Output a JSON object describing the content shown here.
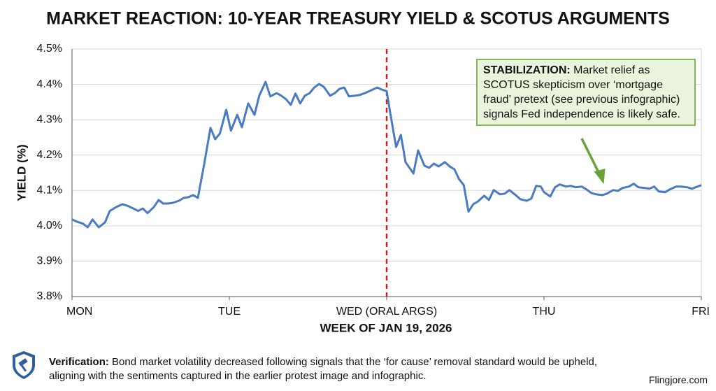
{
  "chart_data": {
    "type": "line",
    "title": "MARKET REACTION: 10-YEAR TREASURY YIELD & SCOTUS ARGUMENTS",
    "y_label": "YIELD (%)",
    "x_label": "WEEK OF JAN 19, 2026",
    "color": "#4a7bc0",
    "grid": true,
    "xlim": [
      0,
      4
    ],
    "xticks": [
      {
        "value": 0,
        "label": "MON"
      },
      {
        "value": 1,
        "label": "TUE"
      },
      {
        "value": 2,
        "label": "WED (ORAL ARGS)"
      },
      {
        "value": 3,
        "label": "THU"
      },
      {
        "value": 4,
        "label": "FRI"
      }
    ],
    "ylim": [
      3.8,
      4.5
    ],
    "yticks": [
      {
        "value": 3.8,
        "label": "3.8%"
      },
      {
        "value": 3.9,
        "label": "3.9%"
      },
      {
        "value": 4.0,
        "label": "4.0%"
      },
      {
        "value": 4.1,
        "label": "4.1%"
      },
      {
        "value": 4.2,
        "label": "4.2%"
      },
      {
        "value": 4.3,
        "label": "4.3%"
      },
      {
        "value": 4.4,
        "label": "4.4%"
      },
      {
        "value": 4.5,
        "label": "4.5%"
      }
    ],
    "vline": {
      "x": 2,
      "color": "#cc2222"
    },
    "annotation": {
      "label": "STABILIZATION:",
      "text": "Market relief as SCOTUS skepticism over ‘mortgage fraud’ pretext (see previous infographic) signals Fed independence is likely safe.",
      "x": 3.38,
      "y": 4.118
    },
    "x": [
      0.0,
      0.03,
      0.07,
      0.1,
      0.13,
      0.17,
      0.21,
      0.24,
      0.28,
      0.32,
      0.35,
      0.39,
      0.42,
      0.45,
      0.48,
      0.52,
      0.55,
      0.58,
      0.61,
      0.64,
      0.68,
      0.71,
      0.74,
      0.77,
      0.8,
      0.84,
      0.88,
      0.91,
      0.94,
      0.98,
      1.01,
      1.05,
      1.08,
      1.12,
      1.16,
      1.19,
      1.23,
      1.26,
      1.3,
      1.33,
      1.36,
      1.39,
      1.42,
      1.45,
      1.48,
      1.51,
      1.54,
      1.57,
      1.6,
      1.64,
      1.67,
      1.7,
      1.73,
      1.76,
      1.8,
      1.83,
      1.86,
      1.9,
      1.94,
      1.97,
      2.0,
      2.02,
      2.06,
      2.09,
      2.12,
      2.17,
      2.2,
      2.24,
      2.27,
      2.3,
      2.33,
      2.37,
      2.4,
      2.43,
      2.46,
      2.49,
      2.52,
      2.55,
      2.58,
      2.62,
      2.65,
      2.68,
      2.72,
      2.75,
      2.78,
      2.82,
      2.85,
      2.89,
      2.92,
      2.95,
      2.98,
      3.0,
      3.04,
      3.07,
      3.1,
      3.14,
      3.17,
      3.2,
      3.24,
      3.27,
      3.3,
      3.33,
      3.37,
      3.4,
      3.44,
      3.47,
      3.5,
      3.54,
      3.57,
      3.6,
      3.64,
      3.67,
      3.7,
      3.73,
      3.77,
      3.8,
      3.84,
      3.87,
      3.91,
      3.94,
      4.0
    ],
    "values": [
      4.018,
      4.012,
      4.006,
      3.996,
      4.018,
      3.996,
      4.01,
      4.042,
      4.053,
      4.061,
      4.057,
      4.049,
      4.042,
      4.049,
      4.036,
      4.053,
      4.073,
      4.063,
      4.063,
      4.065,
      4.071,
      4.079,
      4.081,
      4.087,
      4.079,
      4.174,
      4.277,
      4.245,
      4.261,
      4.328,
      4.269,
      4.314,
      4.279,
      4.346,
      4.314,
      4.368,
      4.407,
      4.366,
      4.375,
      4.368,
      4.358,
      4.342,
      4.374,
      4.346,
      4.368,
      4.375,
      4.391,
      4.401,
      4.393,
      4.368,
      4.375,
      4.387,
      4.391,
      4.366,
      4.368,
      4.37,
      4.375,
      4.383,
      4.391,
      4.385,
      4.381,
      4.326,
      4.223,
      4.257,
      4.18,
      4.148,
      4.213,
      4.17,
      4.164,
      4.176,
      4.168,
      4.18,
      4.168,
      4.16,
      4.132,
      4.115,
      4.04,
      4.061,
      4.069,
      4.085,
      4.073,
      4.101,
      4.089,
      4.091,
      4.101,
      4.087,
      4.075,
      4.071,
      4.077,
      4.113,
      4.111,
      4.095,
      4.083,
      4.109,
      4.117,
      4.111,
      4.113,
      4.109,
      4.111,
      4.103,
      4.093,
      4.089,
      4.087,
      4.091,
      4.101,
      4.099,
      4.107,
      4.111,
      4.119,
      4.109,
      4.107,
      4.105,
      4.111,
      4.097,
      4.095,
      4.103,
      4.111,
      4.111,
      4.109,
      4.105,
      4.115
    ]
  },
  "footer": {
    "label": "Verification:",
    "text": "Bond market volatility decreased following signals that the ‘for cause’ removal standard would be upheld, aligning with the sentiments captured in the earlier protest image and infographic.",
    "site": "Flingjore.com"
  }
}
